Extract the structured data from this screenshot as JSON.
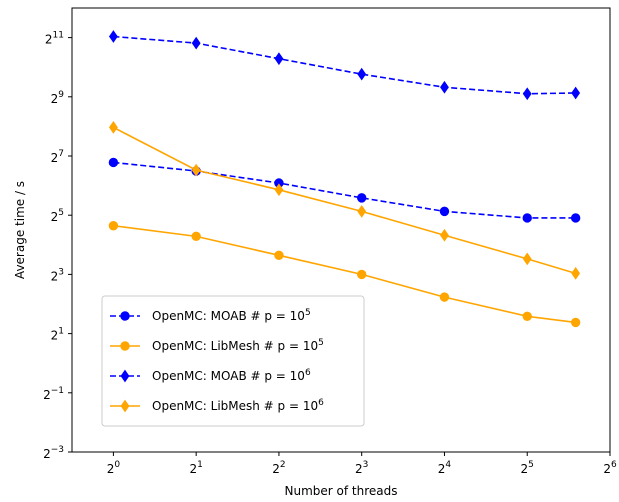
{
  "chart_data": {
    "type": "line",
    "title": "",
    "xlabel": "Number of threads",
    "ylabel": "Average time / s",
    "x_scale": "log2",
    "y_scale": "log2",
    "x": [
      1,
      2,
      4,
      8,
      16,
      32,
      48
    ],
    "xlim": [
      0.707,
      64
    ],
    "ylim": [
      0.125,
      4096
    ],
    "x_ticks": [
      {
        "value": 1,
        "base": "2",
        "exp": "0"
      },
      {
        "value": 2,
        "base": "2",
        "exp": "1"
      },
      {
        "value": 4,
        "base": "2",
        "exp": "2"
      },
      {
        "value": 8,
        "base": "2",
        "exp": "3"
      },
      {
        "value": 16,
        "base": "2",
        "exp": "4"
      },
      {
        "value": 32,
        "base": "2",
        "exp": "5"
      },
      {
        "value": 64,
        "base": "2",
        "exp": "6"
      }
    ],
    "y_ticks": [
      {
        "value": 0.125,
        "base": "2",
        "exp": "−3"
      },
      {
        "value": 0.5,
        "base": "2",
        "exp": "−1"
      },
      {
        "value": 2,
        "base": "2",
        "exp": "1"
      },
      {
        "value": 8,
        "base": "2",
        "exp": "3"
      },
      {
        "value": 32,
        "base": "2",
        "exp": "5"
      },
      {
        "value": 128,
        "base": "2",
        "exp": "7"
      },
      {
        "value": 512,
        "base": "2",
        "exp": "9"
      },
      {
        "value": 2048,
        "base": "2",
        "exp": "11"
      }
    ],
    "grid": false,
    "legend_position": "lower-left",
    "series": [
      {
        "name": "OpenMC: MOAB # p = 10",
        "name_sup": "5",
        "color": "#0000ff",
        "linestyle": "dashed",
        "marker": "circle",
        "values": [
          110,
          90,
          68,
          48,
          35,
          30,
          30
        ]
      },
      {
        "name": "OpenMC: LibMesh # p = 10",
        "name_sup": "5",
        "color": "#ffa500",
        "linestyle": "solid",
        "marker": "circle",
        "values": [
          25,
          19.5,
          12.5,
          8.0,
          4.7,
          3.0,
          2.6
        ]
      },
      {
        "name": "OpenMC: MOAB # p = 10",
        "name_sup": "6",
        "color": "#0000ff",
        "linestyle": "dashed",
        "marker": "diamond",
        "values": [
          2100,
          1800,
          1250,
          870,
          640,
          550,
          560
        ]
      },
      {
        "name": "OpenMC: LibMesh # p = 10",
        "name_sup": "6",
        "color": "#ffa500",
        "linestyle": "solid",
        "marker": "diamond",
        "values": [
          250,
          92,
          58,
          35,
          20,
          11.5,
          8.2
        ]
      }
    ]
  }
}
